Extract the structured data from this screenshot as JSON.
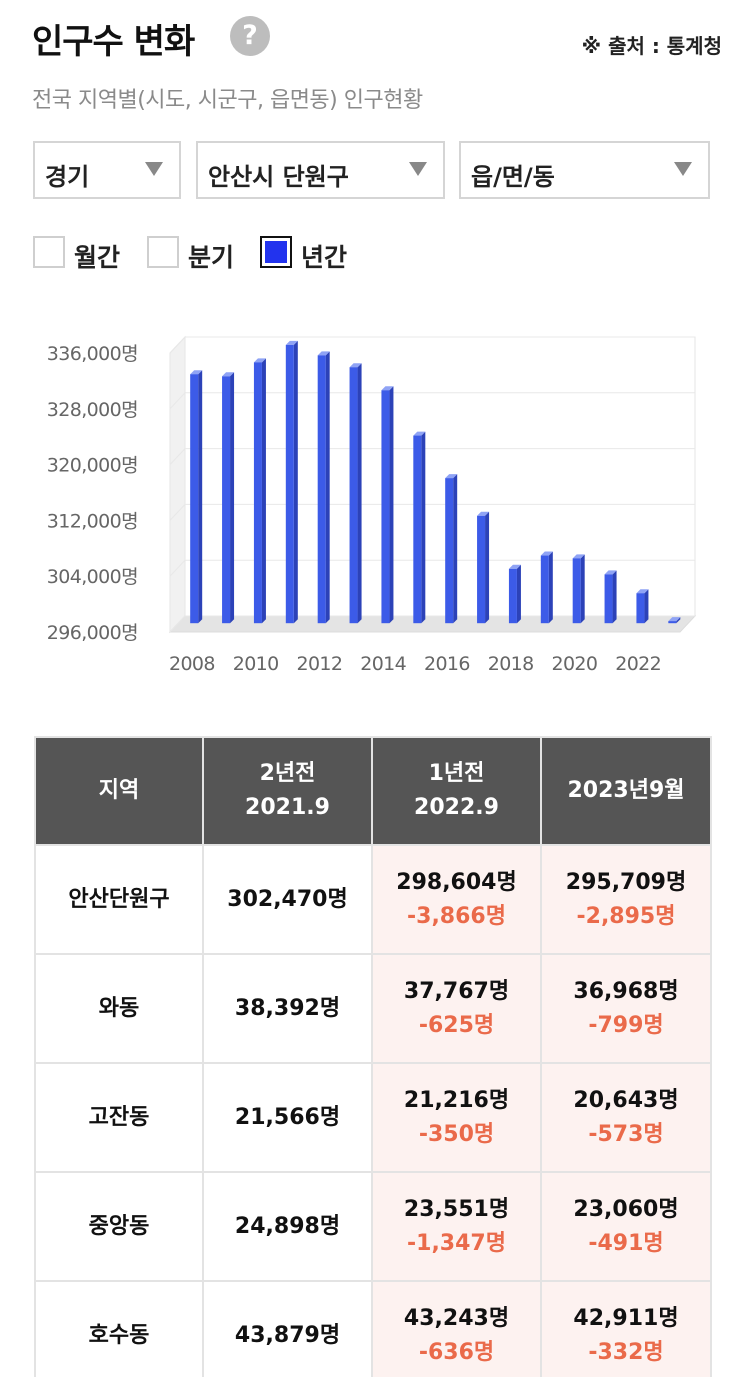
{
  "header": {
    "title": "인구수 변화",
    "help_icon": "question-icon",
    "source": "※ 출처 : 통계청"
  },
  "subtitle": "전국 지역별(시도, 시군구, 읍면동) 인구현황",
  "filters": {
    "province": "경기",
    "district": "안산시 단원구",
    "town": "읍/면/동"
  },
  "period": {
    "options": [
      {
        "label": "월간",
        "checked": false
      },
      {
        "label": "분기",
        "checked": false
      },
      {
        "label": "년간",
        "checked": true
      }
    ]
  },
  "chart_data": {
    "type": "bar",
    "x": [
      2008,
      2009,
      2010,
      2011,
      2012,
      2013,
      2014,
      2015,
      2016,
      2017,
      2018,
      2019,
      2020,
      2021,
      2022,
      2023
    ],
    "values": [
      331700,
      331400,
      333400,
      335900,
      334400,
      332700,
      329400,
      322900,
      316800,
      311400,
      303800,
      305700,
      305300,
      303000,
      300300,
      296300
    ],
    "xtick_labels": [
      "2008",
      "2010",
      "2012",
      "2014",
      "2016",
      "2018",
      "2020",
      "2022"
    ],
    "ytick_labels": [
      "336,000명",
      "328,000명",
      "320,000명",
      "312,000명",
      "304,000명",
      "296,000명"
    ],
    "yticks": [
      336000,
      328000,
      320000,
      312000,
      304000,
      296000
    ],
    "ylim": [
      296000,
      336000
    ],
    "bar_color": "#3c5be8",
    "grid": true
  },
  "table": {
    "headers": [
      {
        "line1": "지역",
        "line2": ""
      },
      {
        "line1": "2년전",
        "line2": "2021.9"
      },
      {
        "line1": "1년전",
        "line2": "2022.9"
      },
      {
        "line1": "2023년9월",
        "line2": ""
      }
    ],
    "rows": [
      {
        "region": "안산단원구",
        "y2021": "302,470명",
        "y2022": "298,604명",
        "y2022_diff": "-3,866명",
        "y2023": "295,709명",
        "y2023_diff": "-2,895명"
      },
      {
        "region": "와동",
        "y2021": "38,392명",
        "y2022": "37,767명",
        "y2022_diff": "-625명",
        "y2023": "36,968명",
        "y2023_diff": "-799명"
      },
      {
        "region": "고잔동",
        "y2021": "21,566명",
        "y2022": "21,216명",
        "y2022_diff": "-350명",
        "y2023": "20,643명",
        "y2023_diff": "-573명"
      },
      {
        "region": "중앙동",
        "y2021": "24,898명",
        "y2022": "23,551명",
        "y2022_diff": "-1,347명",
        "y2023": "23,060명",
        "y2023_diff": "-491명"
      },
      {
        "region": "호수동",
        "y2021": "43,879명",
        "y2022": "43,243명",
        "y2022_diff": "-636명",
        "y2023": "42,911명",
        "y2023_diff": "-332명"
      }
    ]
  },
  "colors": {
    "accent": "#2233ee",
    "header_bg": "#555555",
    "diff": "#ea6a4a",
    "shade": "#fdf2f0"
  }
}
